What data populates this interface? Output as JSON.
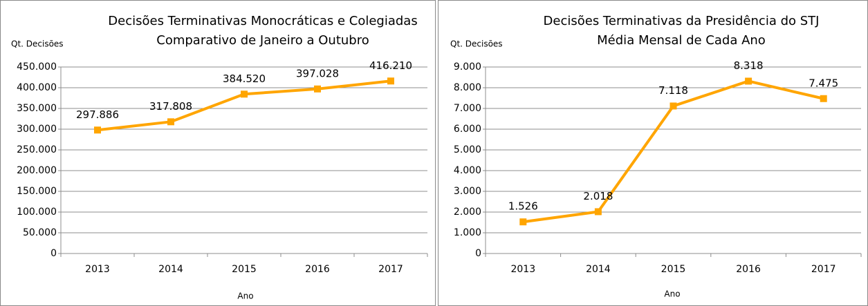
{
  "chart_data": [
    {
      "type": "line",
      "title": "Decisões Terminativas Monocráticas e Colegiadas",
      "subtitle": "Comparativo de Janeiro a Outubro",
      "ylabel": "Qt. Decisões",
      "xlabel": "Ano",
      "categories": [
        "2013",
        "2014",
        "2015",
        "2016",
        "2017"
      ],
      "values": [
        297886,
        317808,
        384520,
        397028,
        416210
      ],
      "value_labels": [
        "297.886",
        "317.808",
        "384.520",
        "397.028",
        "416.210"
      ],
      "color": "#ffa500",
      "grid": true,
      "ylim": [
        0,
        450000
      ],
      "yticks": [
        0,
        {
          "value": 50000,
          "label": "50.000"
        },
        {
          "value": 100000,
          "label": "100.000"
        },
        {
          "value": 150000,
          "label": "150.000"
        },
        {
          "value": 200000,
          "label": "200.000"
        },
        {
          "value": 250000,
          "label": "250.000"
        },
        {
          "value": 300000,
          "label": "300.000"
        },
        {
          "value": 350000,
          "label": "350.000"
        },
        {
          "value": 400000,
          "label": "400.000"
        },
        {
          "value": 450000,
          "label": "450.000"
        }
      ]
    },
    {
      "type": "line",
      "title": "Decisões Terminativas da Presidência do STJ",
      "subtitle": "Média Mensal de Cada Ano",
      "ylabel": "Qt. Decisões",
      "xlabel": "Ano",
      "categories": [
        "2013",
        "2014",
        "2015",
        "2016",
        "2017"
      ],
      "values": [
        1526,
        2018,
        7118,
        8318,
        7475
      ],
      "value_labels": [
        "1.526",
        "2.018",
        "7.118",
        "8.318",
        "7.475"
      ],
      "color": "#ffa500",
      "grid": true,
      "ylim": [
        0,
        9000
      ],
      "yticks": [
        0,
        {
          "value": 1000,
          "label": "1.000"
        },
        {
          "value": 2000,
          "label": "2.000"
        },
        {
          "value": 3000,
          "label": "3.000"
        },
        {
          "value": 4000,
          "label": "4.000"
        },
        {
          "value": 5000,
          "label": "5.000"
        },
        {
          "value": 6000,
          "label": "6.000"
        },
        {
          "value": 7000,
          "label": "7.000"
        },
        {
          "value": 8000,
          "label": "8.000"
        },
        {
          "value": 9000,
          "label": "9.000"
        }
      ]
    }
  ]
}
